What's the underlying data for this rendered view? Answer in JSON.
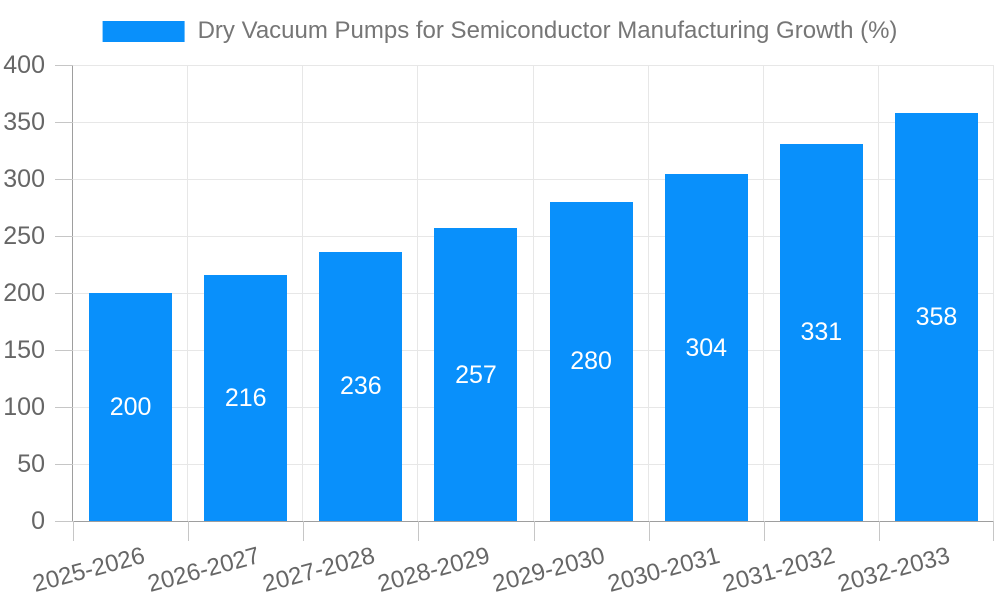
{
  "chart_data": {
    "type": "bar",
    "title": "Dry Vacuum Pumps for Semiconductor Manufacturing Growth (%)",
    "categories": [
      "2025-2026",
      "2026-2027",
      "2027-2028",
      "2028-2029",
      "2029-2030",
      "2030-2031",
      "2031-2032",
      "2032-2033"
    ],
    "values": [
      200,
      216,
      236,
      257,
      280,
      304,
      331,
      358
    ],
    "xlabel": "",
    "ylabel": "",
    "ylim": [
      0,
      400
    ],
    "yticks": [
      0,
      50,
      100,
      150,
      200,
      250,
      300,
      350,
      400
    ],
    "grid": true,
    "legend_position": "top",
    "x_label_rotation_deg": -15,
    "bar_value_label_position": "center",
    "colors": {
      "bar": "#0990FB",
      "bar_label": "#FFFFFF",
      "axis_line": "#9E9E9E",
      "gridline": "#E7E7E7",
      "tick_mark": "#C6C6C6",
      "tick_label": "#666666",
      "title": "#767676",
      "background": "#FFFFFF"
    }
  }
}
